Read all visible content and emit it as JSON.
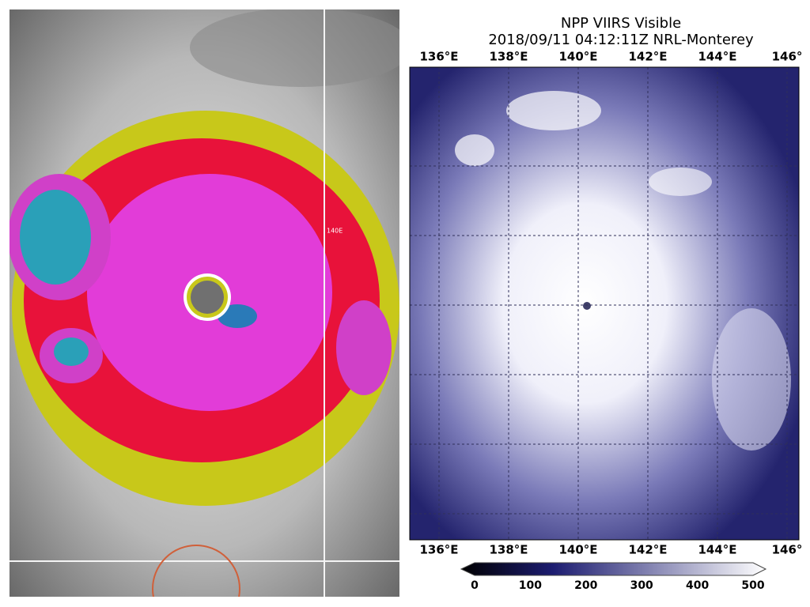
{
  "left_panel": {
    "grid_label": "140E"
  },
  "right_panel": {
    "title": "NPP VIIRS Visible",
    "subtitle": "2018/09/11 04:12:11Z NRL-Monterey",
    "top_lon_labels": [
      "136°E",
      "138°E",
      "140°E",
      "142°E",
      "144°E",
      "146°"
    ],
    "bottom_lon_labels": [
      "136°E",
      "138°E",
      "140°E",
      "142°E",
      "144°E",
      "146°"
    ],
    "colorbar_ticks": [
      "0",
      "100",
      "200",
      "300",
      "400",
      "500"
    ]
  }
}
